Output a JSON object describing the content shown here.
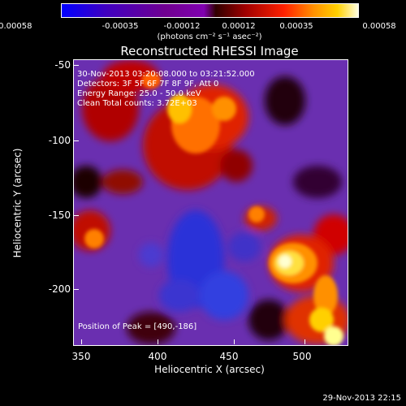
{
  "colorbar": {
    "ticks": [
      "-0.00058",
      "-0.00035",
      "-0.00012",
      "0.00012",
      "0.00035",
      "0.00058"
    ],
    "units": "(photons cm⁻² s⁻¹ asec⁻²)"
  },
  "title": "Reconstructed RHESSI Image",
  "info": {
    "time": "30-Nov-2013 03:20:08.000 to 03:21:52.000",
    "detectors": "Detectors: 3F 5F 6F 7F 8F 9F, Att 0",
    "energy": "Energy Range: 25.0 - 50.0 keV",
    "clean": "Clean     Total counts: 3.72E+03"
  },
  "peak": "Position of Peak = [490,-186]",
  "axes": {
    "xlabel": "Heliocentric X (arcsec)",
    "ylabel": "Heliocentric Y (arcsec)",
    "xticks": [
      "350",
      "400",
      "450",
      "500"
    ],
    "yticks": [
      "-50",
      "-100",
      "-150",
      "-200"
    ]
  },
  "timestamp": "29-Nov-2013 22:15",
  "colors": {
    "background": "#000000",
    "image_base": "#6a2fb0"
  }
}
